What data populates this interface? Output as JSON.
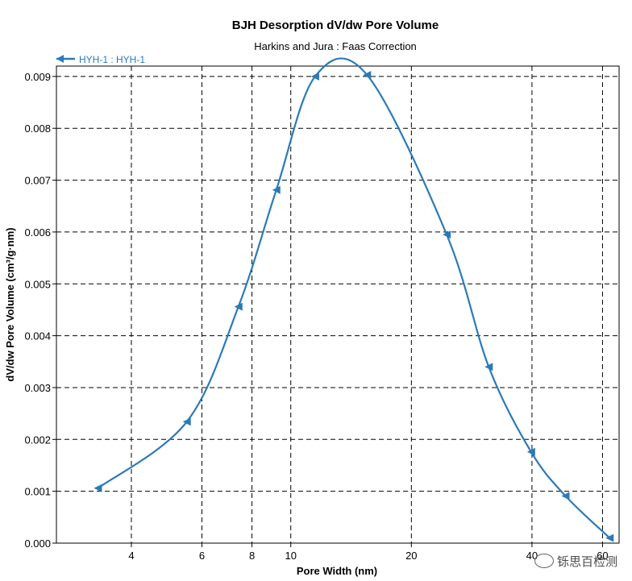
{
  "chart_data": {
    "type": "line",
    "title": "BJH Desorption dV/dw Pore Volume",
    "subtitle": "Harkins and Jura : Faas Correction",
    "xlabel": "Pore Width (nm)",
    "ylabel": "dV/dw Pore Volume (cm³/g·nm)",
    "x_scale": "log",
    "xlim": [
      2.6,
      66
    ],
    "ylim": [
      0,
      0.0092
    ],
    "x_ticks": [
      "4",
      "6",
      "8",
      "10",
      "20",
      "40",
      "60"
    ],
    "x_tick_values": [
      4,
      6,
      8,
      10,
      20,
      40,
      60
    ],
    "y_ticks": [
      "0.000",
      "0.001",
      "0.002",
      "0.003",
      "0.004",
      "0.005",
      "0.006",
      "0.007",
      "0.008",
      "0.009"
    ],
    "y_tick_values": [
      0,
      0.001,
      0.002,
      0.003,
      0.004,
      0.005,
      0.006,
      0.007,
      0.008,
      0.009
    ],
    "grid": true,
    "legend_position": "top-left",
    "series": [
      {
        "name": "HYH-1 : HYH-1",
        "color": "#2a7ab8",
        "marker": "left-triangle",
        "x": [
          3.3,
          5.5,
          7.4,
          9.2,
          11.5,
          15.5,
          24.5,
          31.2,
          39.8,
          48.5,
          62.5
        ],
        "y": [
          0.00106,
          0.00234,
          0.00456,
          0.00681,
          0.009,
          0.00903,
          0.00595,
          0.0034,
          0.00176,
          0.00091,
          0.0001
        ]
      }
    ]
  },
  "watermark": "铄思百检测"
}
